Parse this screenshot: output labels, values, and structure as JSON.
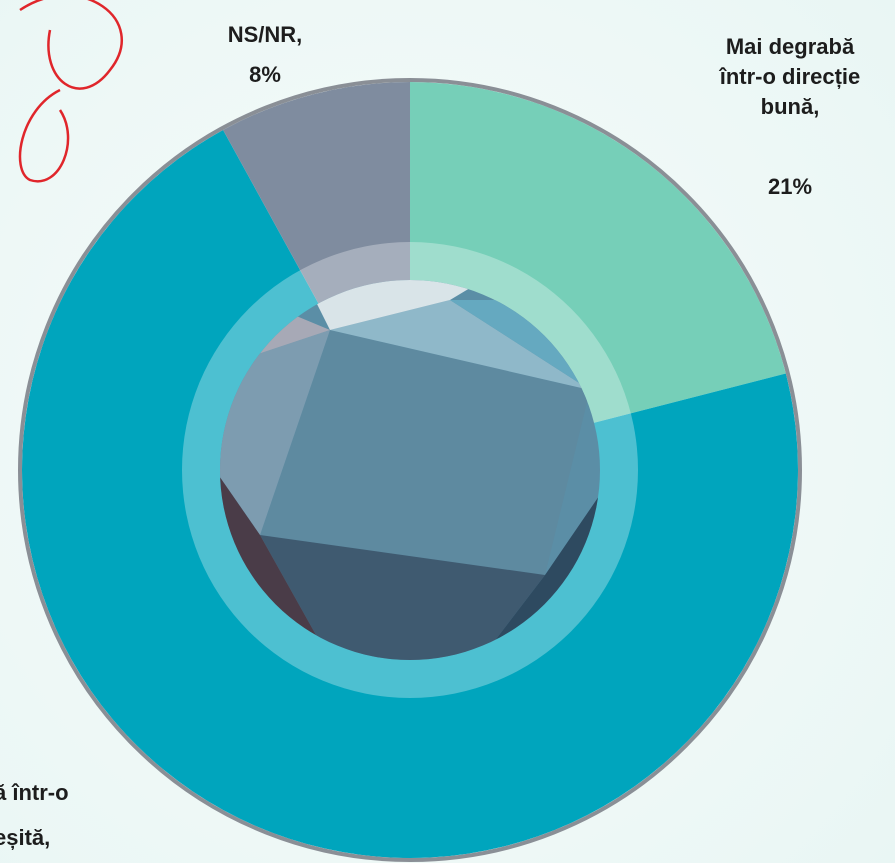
{
  "chart_data": {
    "type": "donut",
    "categories": [
      "Mai degrabă\nîntr-o direcție\nbună,",
      "ă într-o\neșită,",
      "NS/NR,"
    ],
    "values": [
      21,
      71,
      8
    ],
    "value_labels": [
      "21%",
      null,
      "8%"
    ],
    "colors": [
      "#76cfb8",
      "#00a5bd",
      "#7f8c9f"
    ]
  }
}
